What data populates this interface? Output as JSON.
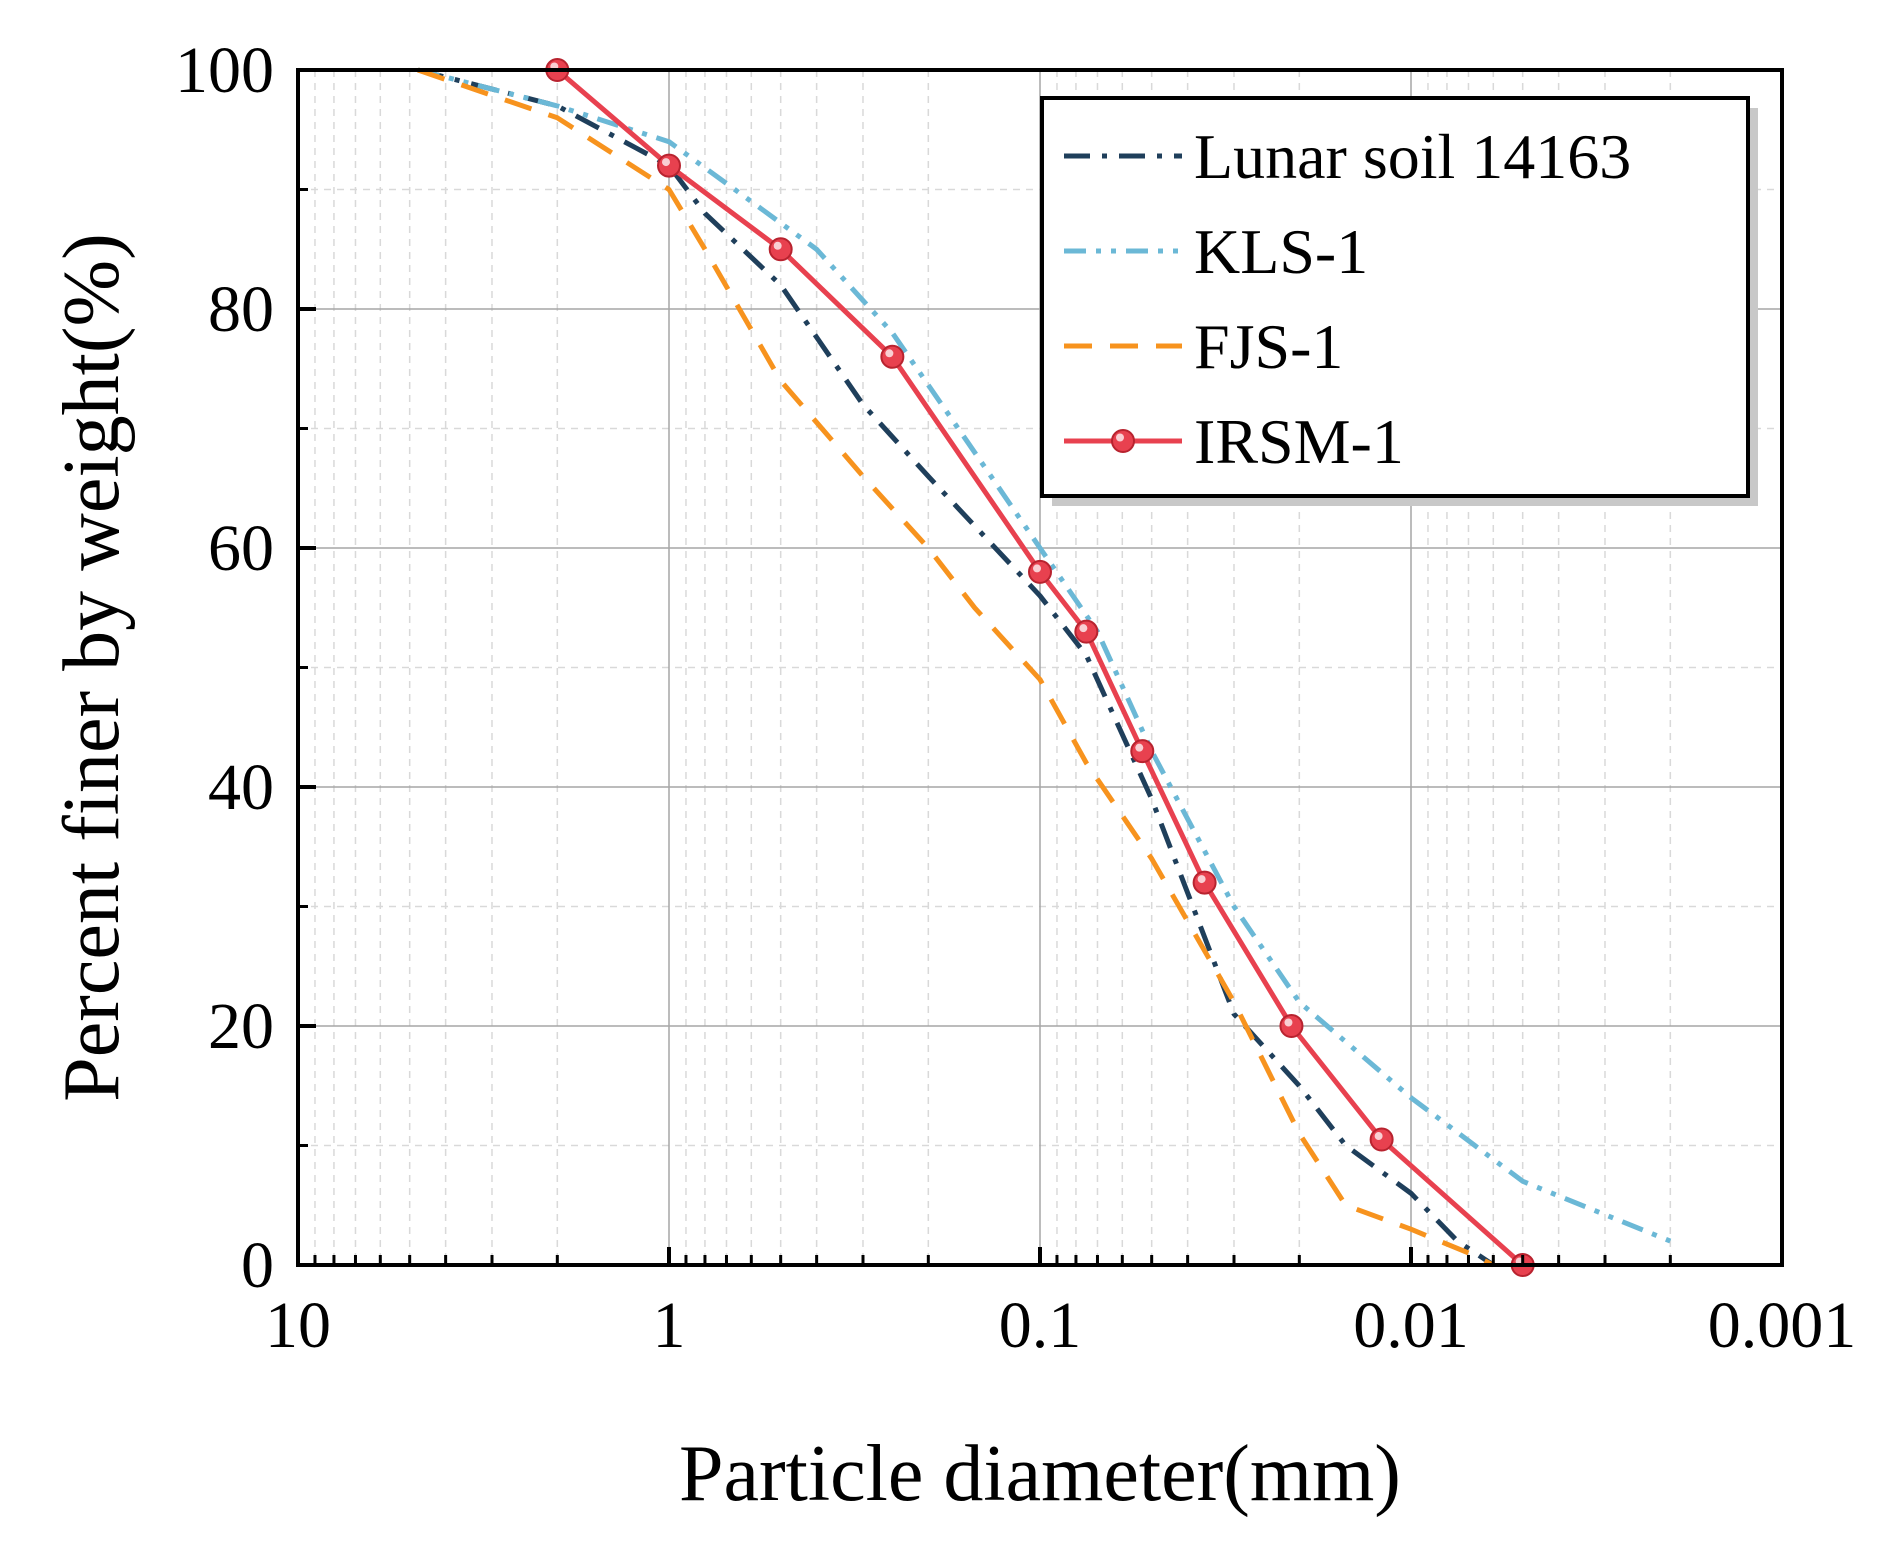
{
  "chart_data": {
    "type": "line",
    "title": "",
    "xlabel": "Particle diameter(mm)",
    "ylabel": "Percent finer by weight(%)",
    "x_scale": "log",
    "x_reversed": true,
    "xlim": [
      10,
      0.001
    ],
    "ylim": [
      0,
      100
    ],
    "x_ticks": [
      10,
      1,
      0.1,
      0.01,
      0.001
    ],
    "x_tick_labels": [
      "10",
      "1",
      "0.1",
      "0.01",
      "0.001"
    ],
    "y_ticks": [
      0,
      20,
      40,
      60,
      80,
      100
    ],
    "y_tick_labels": [
      "0",
      "20",
      "40",
      "60",
      "80",
      "100"
    ],
    "grid": true,
    "legend_position": "top-right",
    "series": [
      {
        "name": "Lunar soil 14163",
        "color": "#1f3f5b",
        "style": "dashdot",
        "markers": false,
        "x": [
          4.75,
          2,
          1,
          0.8,
          0.5,
          0.3,
          0.2,
          0.1,
          0.075,
          0.05,
          0.03,
          0.02,
          0.015,
          0.01,
          0.0075,
          0.006
        ],
        "y": [
          100,
          97,
          92,
          88,
          82,
          72,
          66,
          56,
          51,
          39,
          21,
          15,
          10,
          6,
          2,
          0
        ]
      },
      {
        "name": "KLS-1",
        "color": "#6bb8d6",
        "style": "dashdotdot",
        "markers": false,
        "x": [
          4.75,
          2,
          1,
          0.6,
          0.4,
          0.25,
          0.15,
          0.1,
          0.07,
          0.05,
          0.03,
          0.02,
          0.01,
          0.005,
          0.002
        ],
        "y": [
          100,
          97,
          94,
          89,
          85,
          78,
          68,
          60,
          53,
          43,
          30,
          22,
          14,
          7,
          2
        ]
      },
      {
        "name": "FJS-1",
        "color": "#f7931e",
        "style": "dashed",
        "markers": false,
        "x": [
          4.75,
          2,
          1,
          0.8,
          0.5,
          0.3,
          0.2,
          0.15,
          0.1,
          0.075,
          0.05,
          0.03,
          0.02,
          0.015,
          0.01,
          0.007,
          0.006
        ],
        "y": [
          100,
          96,
          90,
          85,
          74,
          66,
          60,
          55,
          49,
          42,
          34,
          22,
          11,
          5,
          3,
          1,
          0
        ]
      },
      {
        "name": "IRSM-1",
        "color": "#e8414f",
        "style": "solid",
        "markers": true,
        "x": [
          2,
          1,
          0.5,
          0.25,
          0.1,
          0.075,
          0.053,
          0.036,
          0.021,
          0.012,
          0.005
        ],
        "y": [
          100,
          92,
          85,
          76,
          58,
          53,
          43,
          32,
          20,
          10.5,
          0
        ]
      }
    ]
  }
}
